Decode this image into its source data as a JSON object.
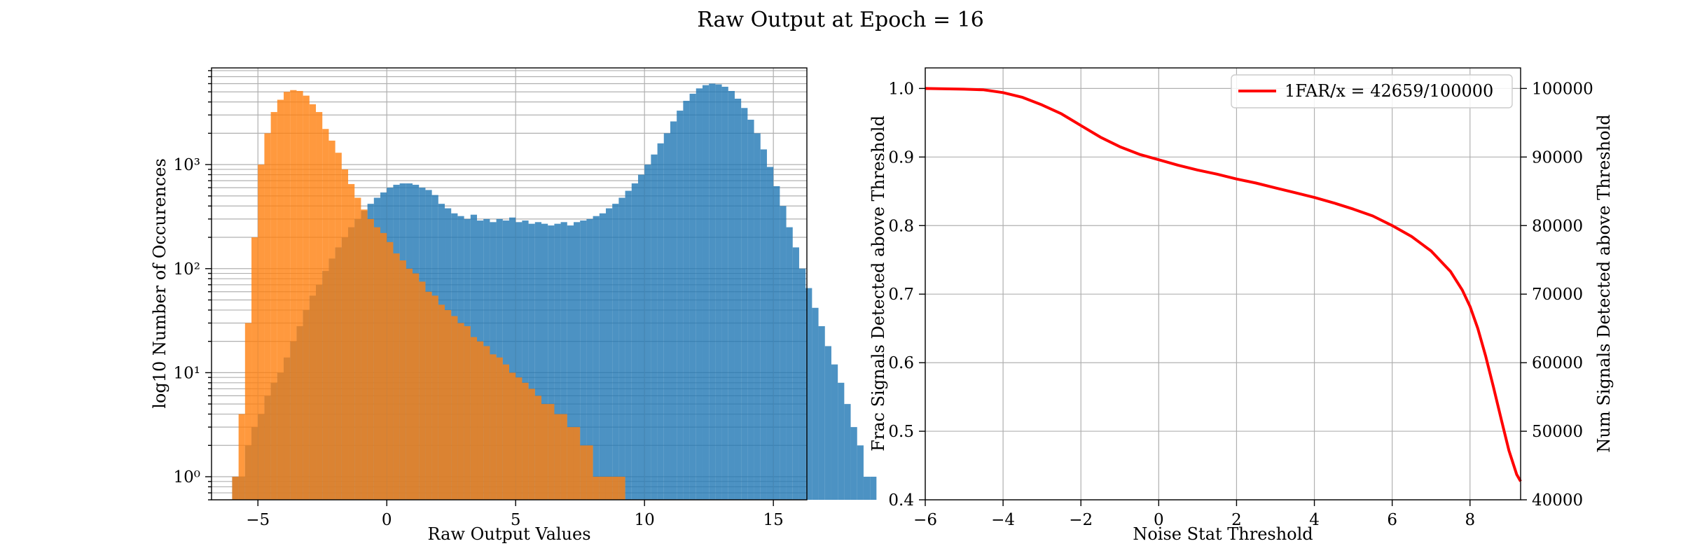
{
  "figure_title": "Raw Output at Epoch = 16",
  "colors": {
    "signal": "#1f77b4",
    "noise": "#ff7f0e",
    "curve": "#ff0000",
    "grid": "#b0b0b0"
  },
  "chart_data": [
    {
      "type": "histogram",
      "xlabel": "Raw Output Values",
      "ylabel": "log10 Number of Occurences",
      "yscale": "log",
      "xlim": [
        -6.8,
        16.3
      ],
      "ylim": [
        0.6,
        8500
      ],
      "grid": "both (major and minor)",
      "xticks": [
        -5,
        0,
        5,
        10,
        15
      ],
      "xtick_labels": [
        "−5",
        "0",
        "5",
        "10",
        "15"
      ],
      "yticks": [
        1,
        10,
        100,
        1000
      ],
      "ytick_labels": [
        "10⁰",
        "10¹",
        "10²",
        "10³"
      ],
      "series": [
        {
          "name": "",
          "color": "#1f77b4",
          "alpha": 0.8,
          "bin_start": -6.0,
          "bin_width": 0.25,
          "counts": [
            1,
            1,
            2,
            3,
            4,
            6,
            8,
            10,
            14,
            20,
            28,
            40,
            55,
            70,
            95,
            125,
            160,
            200,
            250,
            300,
            360,
            420,
            480,
            540,
            600,
            640,
            660,
            660,
            640,
            600,
            570,
            510,
            420,
            380,
            340,
            320,
            300,
            330,
            290,
            300,
            280,
            300,
            290,
            310,
            280,
            290,
            270,
            280,
            270,
            260,
            270,
            280,
            260,
            280,
            290,
            300,
            320,
            340,
            380,
            420,
            480,
            560,
            660,
            800,
            1000,
            1250,
            1600,
            2000,
            2600,
            3300,
            4100,
            4800,
            5400,
            5800,
            6000,
            5900,
            5600,
            5100,
            4300,
            3500,
            2700,
            2000,
            1400,
            950,
            620,
            400,
            250,
            160,
            100,
            65,
            42,
            28,
            18,
            12,
            8,
            5,
            3,
            2,
            1,
            1,
            0,
            0,
            0,
            0,
            0,
            0,
            0,
            0,
            0,
            0
          ]
        },
        {
          "name": "",
          "color": "#ff7f0e",
          "alpha": 0.8,
          "bin_start": -6.0,
          "bin_width": 0.25,
          "counts": [
            1,
            4,
            30,
            200,
            1000,
            2000,
            3200,
            4200,
            5000,
            5200,
            5100,
            4600,
            3800,
            3200,
            2200,
            1700,
            1300,
            900,
            650,
            480,
            370,
            300,
            250,
            220,
            180,
            140,
            120,
            100,
            90,
            75,
            60,
            55,
            45,
            40,
            35,
            30,
            28,
            22,
            20,
            18,
            15,
            14,
            12,
            10,
            9,
            8,
            7,
            6,
            5,
            5,
            4,
            4,
            3,
            3,
            2,
            2,
            1,
            1,
            1,
            1,
            1,
            0,
            0,
            0,
            0,
            0,
            0,
            0,
            0,
            0,
            0,
            0,
            0,
            0,
            0,
            0,
            0,
            0,
            0,
            0,
            0,
            0,
            0,
            0,
            0,
            0,
            0,
            0,
            0,
            0,
            0,
            0,
            0,
            0,
            0,
            0,
            0,
            0,
            0,
            0,
            0,
            0,
            0,
            0,
            0,
            0,
            0,
            0,
            0
          ]
        }
      ]
    },
    {
      "type": "line",
      "xlabel": "Noise Stat Threshold",
      "ylabel": "Frac Signals Detected above Threshold",
      "ylabel_right": "Num Signals Detected above Threshold",
      "xlim": [
        -6,
        9.3
      ],
      "ylim": [
        0.4,
        1.03
      ],
      "ylim_right": [
        40000,
        103000
      ],
      "grid": "on",
      "legend_position": "top-right",
      "xticks": [
        -6,
        -4,
        -2,
        0,
        2,
        4,
        6,
        8
      ],
      "xtick_labels": [
        "−6",
        "−4",
        "−2",
        "0",
        "2",
        "4",
        "6",
        "8"
      ],
      "yticks": [
        0.4,
        0.5,
        0.6,
        0.7,
        0.8,
        0.9,
        1.0
      ],
      "ytick_labels": [
        "0.4",
        "0.5",
        "0.6",
        "0.7",
        "0.8",
        "0.9",
        "1.0"
      ],
      "yticks_right": [
        40000,
        50000,
        60000,
        70000,
        80000,
        90000,
        100000
      ],
      "ytick_labels_right": [
        "40000",
        "50000",
        "60000",
        "70000",
        "80000",
        "90000",
        "100000"
      ],
      "series": [
        {
          "name": "1FAR/x = 42659/100000",
          "color": "#ff0000",
          "x": [
            -6,
            -5,
            -4.5,
            -4,
            -3.5,
            -3,
            -2.5,
            -2,
            -1.5,
            -1,
            -0.5,
            0,
            0.5,
            1,
            1.5,
            2,
            2.5,
            3,
            3.5,
            4,
            4.5,
            5,
            5.5,
            6,
            6.5,
            7,
            7.5,
            7.8,
            8,
            8.2,
            8.4,
            8.6,
            8.8,
            9,
            9.2,
            9.3
          ],
          "y": [
            1.0,
            0.999,
            0.998,
            0.994,
            0.987,
            0.976,
            0.963,
            0.946,
            0.929,
            0.915,
            0.904,
            0.896,
            0.888,
            0.881,
            0.875,
            0.868,
            0.862,
            0.855,
            0.848,
            0.841,
            0.833,
            0.824,
            0.814,
            0.8,
            0.784,
            0.763,
            0.733,
            0.706,
            0.682,
            0.65,
            0.61,
            0.565,
            0.518,
            0.472,
            0.437,
            0.427
          ]
        }
      ]
    }
  ]
}
